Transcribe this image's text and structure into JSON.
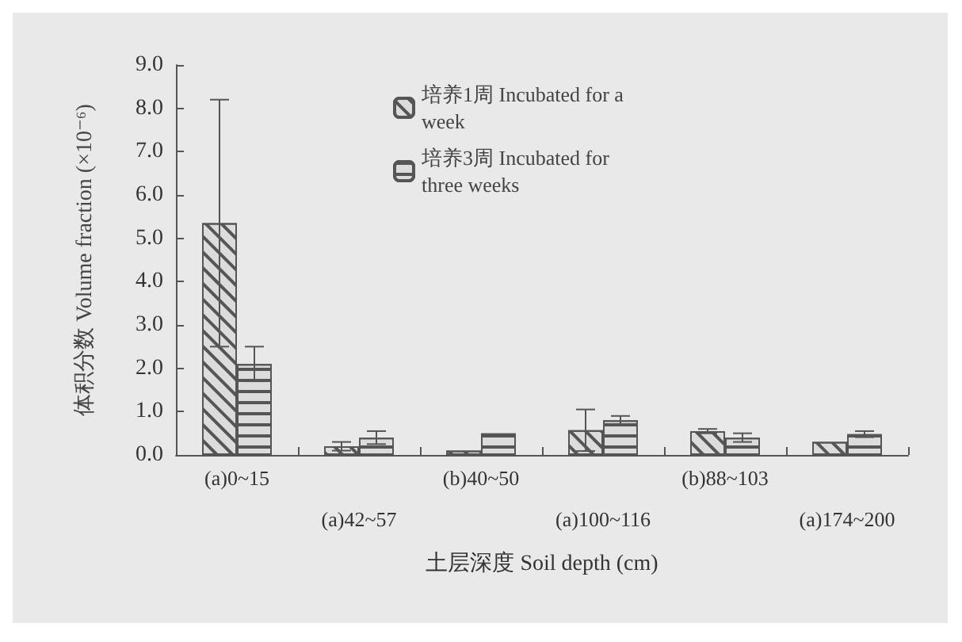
{
  "chart_data": {
    "type": "bar",
    "xlabel": "土层深度 Soil depth (cm)",
    "ylabel": "体积分数 Volume fraction (×10⁻⁶)",
    "categories": [
      "(a)0~15",
      "(a)42~57",
      "(b)40~50",
      "(a)100~116",
      "(b)88~103",
      "(a)174~200"
    ],
    "series": [
      {
        "name": "培养1周 Incubated for a week",
        "color": "#dcdcdc",
        "values": [
          5.35,
          0.2,
          0.1,
          0.57,
          0.55,
          0.3
        ],
        "errors": [
          2.85,
          0.1,
          null,
          0.48,
          0.05,
          null
        ]
      },
      {
        "name": "培养3周 Incubated for three weeks",
        "color": "#dcdcdc",
        "values": [
          2.1,
          0.4,
          0.5,
          0.8,
          0.4,
          0.48
        ],
        "errors": [
          0.4,
          0.15,
          null,
          0.1,
          0.1,
          0.07
        ]
      }
    ],
    "ylim": [
      0,
      9
    ],
    "yticks": [
      {
        "value": 0,
        "label": "0.0"
      },
      {
        "value": 1,
        "label": "1.0"
      },
      {
        "value": 2,
        "label": "2.0"
      },
      {
        "value": 3,
        "label": "3.0"
      },
      {
        "value": 4,
        "label": "4.0"
      },
      {
        "value": 5,
        "label": "5.0"
      },
      {
        "value": 6,
        "label": "6.0"
      },
      {
        "value": 7,
        "label": "7.0"
      },
      {
        "value": 8,
        "label": "8.0"
      },
      {
        "value": 9,
        "label": "9.0"
      }
    ],
    "grid": false,
    "legend": "top right"
  }
}
